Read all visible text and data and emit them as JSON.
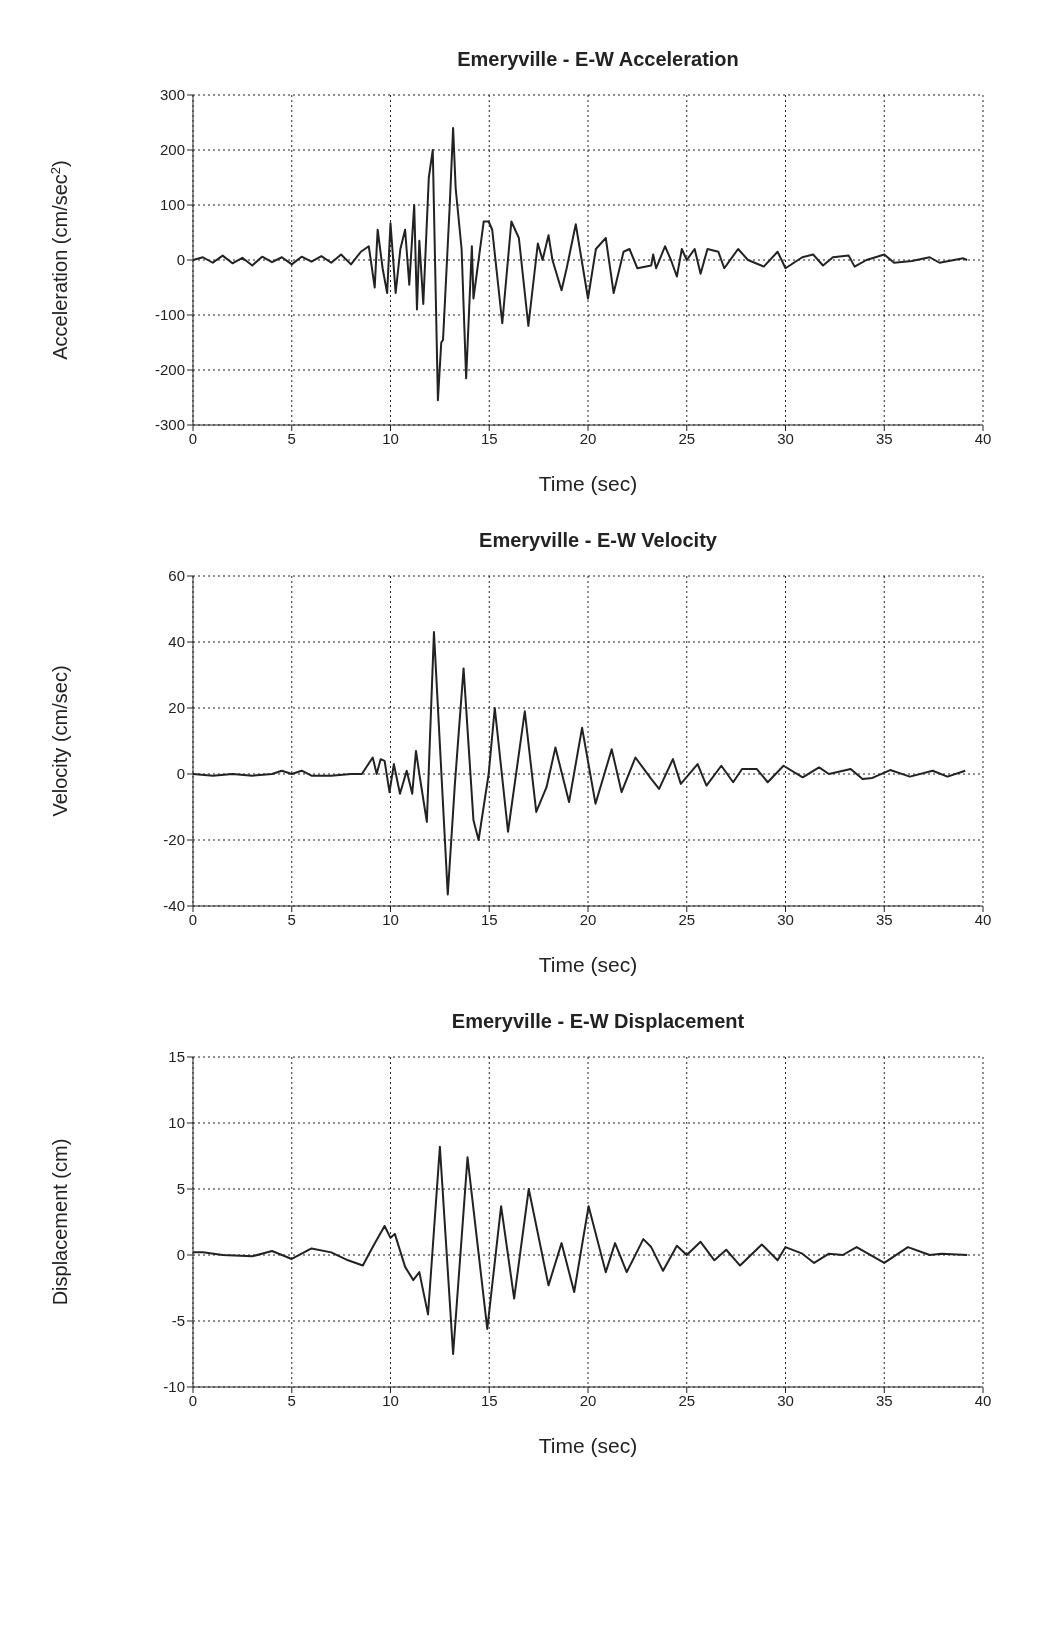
{
  "chart_data": [
    {
      "type": "line",
      "title": "Emeryville - E-W Acceleration",
      "xlabel": "Time (sec)",
      "ylabel": "Acceleration (cm/sec$^{2}$)",
      "xlim": [
        0,
        40
      ],
      "xticks": [
        0,
        5,
        10,
        15,
        20,
        25,
        30,
        35,
        40
      ],
      "ylim": [
        -300,
        300
      ],
      "yticks": [
        -300,
        -200,
        -100,
        0,
        100,
        200,
        300
      ],
      "grid": true,
      "marker": "none",
      "line_style": "solid",
      "series": [
        {
          "color": "#222222",
          "x": [
            0,
            0.5,
            1,
            1.5,
            2,
            2.5,
            3,
            3.5,
            4,
            4.5,
            5,
            5.5,
            6,
            6.5,
            7,
            7.5,
            8,
            8.5,
            8.9,
            9.2,
            9.35,
            9.6,
            9.83,
            10,
            10.26,
            10.5,
            10.74,
            10.95,
            11.2,
            11.34,
            11.46,
            11.66,
            11.94,
            12.14,
            12.4,
            12.57,
            12.66,
            13,
            13.17,
            13.3,
            13.6,
            13.83,
            14.12,
            14.2,
            14.72,
            14.97,
            15.15,
            15.66,
            16.12,
            16.5,
            16.98,
            17.46,
            17.7,
            18,
            18.2,
            18.66,
            18.92,
            19.38,
            20,
            20.4,
            20.9,
            21.3,
            21.8,
            22.1,
            22.5,
            23.2,
            23.3,
            23.45,
            23.9,
            24.2,
            24.5,
            24.75,
            25,
            25.4,
            25.7,
            26.05,
            26.6,
            26.9,
            27.6,
            28.1,
            28.9,
            29.6,
            30,
            30.85,
            31.4,
            31.9,
            32.4,
            33.2,
            33.5,
            34.1,
            35,
            35.5,
            36.4,
            37.3,
            37.8,
            39,
            39.2
          ],
          "values": [
            0,
            5,
            -5,
            8,
            -6,
            4,
            -10,
            6,
            -4,
            5,
            -8,
            6,
            -3,
            7,
            -5,
            10,
            -8,
            15,
            25,
            -50,
            55,
            -15,
            -60,
            67,
            -60,
            20,
            55,
            -45,
            100,
            -90,
            35,
            -80,
            150,
            200,
            -255,
            -150,
            -145,
            100,
            240,
            130,
            20,
            -215,
            25,
            -70,
            70,
            70,
            55,
            -115,
            70,
            40,
            -120,
            30,
            0,
            45,
            0,
            -55,
            -15,
            65,
            -70,
            20,
            40,
            -60,
            15,
            20,
            -15,
            -10,
            10,
            -15,
            25,
            0,
            -30,
            20,
            0,
            20,
            -25,
            20,
            15,
            -15,
            20,
            0,
            -12,
            15,
            -15,
            5,
            10,
            -10,
            5,
            8,
            -12,
            0,
            10,
            -5,
            -2,
            5,
            -5,
            3,
            0
          ]
        }
      ]
    },
    {
      "type": "line",
      "title": "Emeryville - E-W Velocity",
      "xlabel": "Time (sec)",
      "ylabel": "Velocity (cm/sec)",
      "xlim": [
        0,
        40
      ],
      "xticks": [
        0,
        5,
        10,
        15,
        20,
        25,
        30,
        35,
        40
      ],
      "ylim": [
        -40,
        60
      ],
      "yticks": [
        -40,
        -20,
        0,
        20,
        40,
        60
      ],
      "grid": true,
      "marker": "none",
      "line_style": "solid",
      "series": [
        {
          "color": "#222222",
          "x": [
            0,
            1,
            2,
            3,
            4,
            4.5,
            5,
            5.5,
            6,
            7,
            8,
            8.55,
            9.1,
            9.3,
            9.5,
            9.7,
            9.95,
            10.17,
            10.48,
            10.82,
            11.1,
            11.29,
            11.46,
            11.84,
            12.2,
            12.9,
            13.26,
            13.7,
            14.2,
            14.46,
            14.97,
            15.28,
            15.95,
            16.8,
            17.38,
            17.9,
            18.35,
            19.04,
            19.7,
            20.38,
            21.2,
            21.7,
            22.4,
            23.2,
            23.6,
            24.3,
            24.7,
            25.55,
            26,
            26.75,
            27.35,
            27.8,
            28.55,
            29.1,
            29.9,
            30.87,
            31.7,
            32.2,
            33.3,
            33.9,
            34.4,
            35.3,
            36.3,
            37.45,
            38.2,
            39.1
          ],
          "values": [
            0,
            -0.5,
            0,
            -0.5,
            0,
            1,
            0,
            1,
            -0.5,
            -0.5,
            0,
            0,
            5,
            0,
            4.5,
            4,
            -5.5,
            3,
            -6,
            1,
            -6,
            7,
            0,
            -14.5,
            43,
            -36.5,
            -3,
            32,
            -14,
            -20,
            0,
            20,
            -17.5,
            19,
            -11.5,
            -4,
            8,
            -8.5,
            14,
            -9,
            7.5,
            -5.5,
            5,
            -1.5,
            -4.5,
            4.5,
            -3,
            3,
            -3.5,
            2.5,
            -2.5,
            1.5,
            1.5,
            -2.5,
            2.5,
            -1,
            2,
            0,
            1.5,
            -1.5,
            -1.2,
            1.2,
            -0.8,
            1,
            -0.8,
            1
          ]
        }
      ]
    },
    {
      "type": "line",
      "title": "Emeryville - E-W Displacement",
      "xlabel": "Time (sec)",
      "ylabel": "Displacement (cm)",
      "xlim": [
        0,
        40
      ],
      "xticks": [
        0,
        5,
        10,
        15,
        20,
        25,
        30,
        35,
        40
      ],
      "ylim": [
        -10,
        15
      ],
      "yticks": [
        -10,
        -5,
        0,
        5,
        10,
        15
      ],
      "grid": true,
      "marker": "none",
      "line_style": "solid",
      "series": [
        {
          "color": "#222222",
          "x": [
            0,
            0.5,
            1.5,
            3,
            4,
            5,
            6,
            7,
            7.85,
            8.6,
            9.1,
            9.7,
            10,
            10.22,
            10.74,
            11.15,
            11.46,
            11.9,
            12.5,
            13.17,
            13.9,
            14.9,
            15.6,
            16.26,
            17,
            18,
            18.66,
            19.3,
            20.03,
            20.9,
            21.37,
            21.96,
            22.8,
            23.2,
            23.8,
            24.5,
            25,
            25.7,
            26.4,
            27,
            27.7,
            28.8,
            29.6,
            30,
            30.85,
            31.45,
            32.2,
            32.9,
            33.6,
            35,
            36.2,
            37.3,
            37.9,
            39.2
          ],
          "values": [
            0.2,
            0.2,
            0,
            -0.1,
            0.3,
            -0.3,
            0.5,
            0.2,
            -0.4,
            -0.8,
            0.6,
            2.2,
            1.3,
            1.6,
            -0.9,
            -1.9,
            -1.3,
            -4.5,
            8.2,
            -7.5,
            7.4,
            -5.6,
            3.7,
            -3.3,
            5,
            -2.3,
            0.9,
            -2.8,
            3.7,
            -1.3,
            0.9,
            -1.3,
            1.2,
            0.6,
            -1.2,
            0.7,
            0,
            1,
            -0.4,
            0.4,
            -0.8,
            0.8,
            -0.4,
            0.6,
            0.1,
            -0.6,
            0.1,
            0,
            0.6,
            -0.6,
            0.6,
            0,
            0.1,
            0
          ]
        }
      ]
    }
  ]
}
